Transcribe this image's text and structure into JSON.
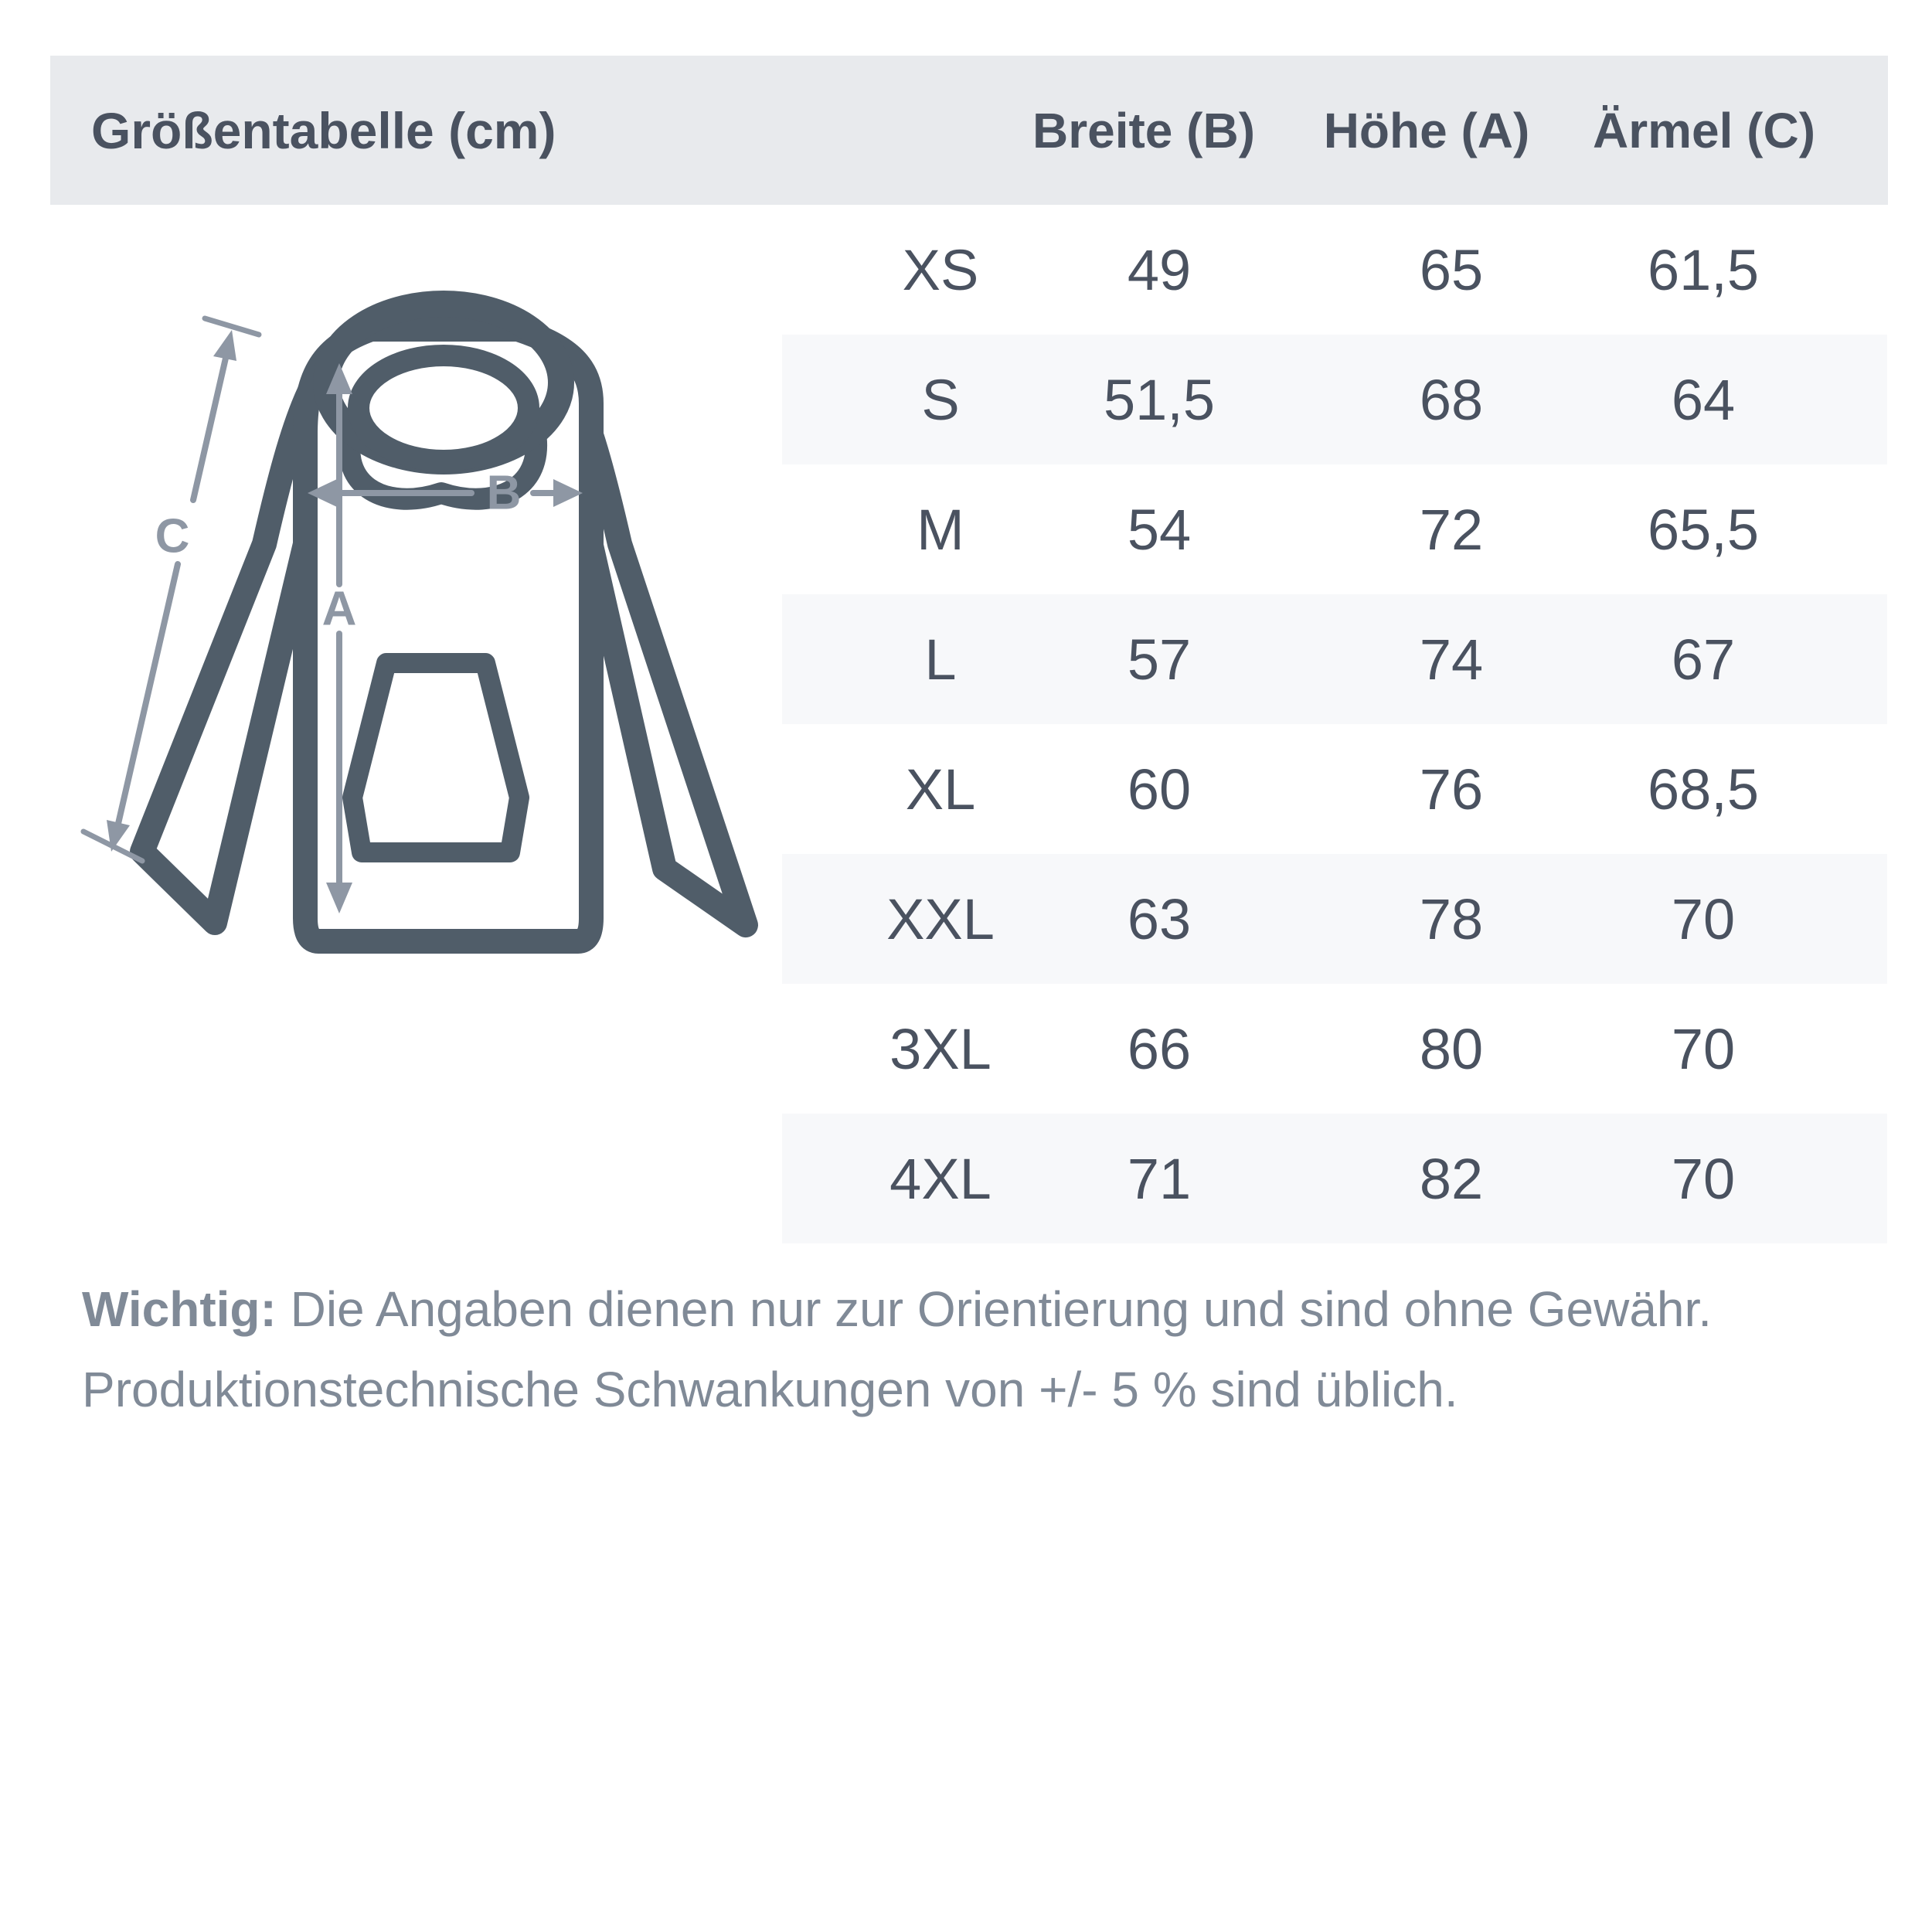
{
  "header": {
    "title": "Größentabelle (cm)",
    "columns": [
      "Breite (B)",
      "Höhe (A)",
      "Ärmel (C)"
    ],
    "background": "#e8eaed",
    "text_color": "#4a5260"
  },
  "diagram": {
    "labels": {
      "height": "A",
      "width": "B",
      "sleeve": "C"
    },
    "outline_color": "#505d69",
    "dimension_color": "#8e97a4"
  },
  "table": {
    "alt_row_background": "#f7f8fa",
    "text_color": "#4a5260",
    "rows": [
      {
        "size": "XS",
        "breite": "49",
        "hoehe": "65",
        "aermel": "61,5"
      },
      {
        "size": "S",
        "breite": "51,5",
        "hoehe": "68",
        "aermel": "64"
      },
      {
        "size": "M",
        "breite": "54",
        "hoehe": "72",
        "aermel": "65,5"
      },
      {
        "size": "L",
        "breite": "57",
        "hoehe": "74",
        "aermel": "67"
      },
      {
        "size": "XL",
        "breite": "60",
        "hoehe": "76",
        "aermel": "68,5"
      },
      {
        "size": "XXL",
        "breite": "63",
        "hoehe": "78",
        "aermel": "70"
      },
      {
        "size": "3XL",
        "breite": "66",
        "hoehe": "80",
        "aermel": "70"
      },
      {
        "size": "4XL",
        "breite": "71",
        "hoehe": "82",
        "aermel": "70"
      }
    ]
  },
  "footer": {
    "lead": "Wichtig:",
    "line1": " Die Angaben dienen nur zur Orientierung und sind ohne Gewähr.",
    "line2": "Produktionstechnische Schwankungen von +/- 5 % sind üblich."
  }
}
